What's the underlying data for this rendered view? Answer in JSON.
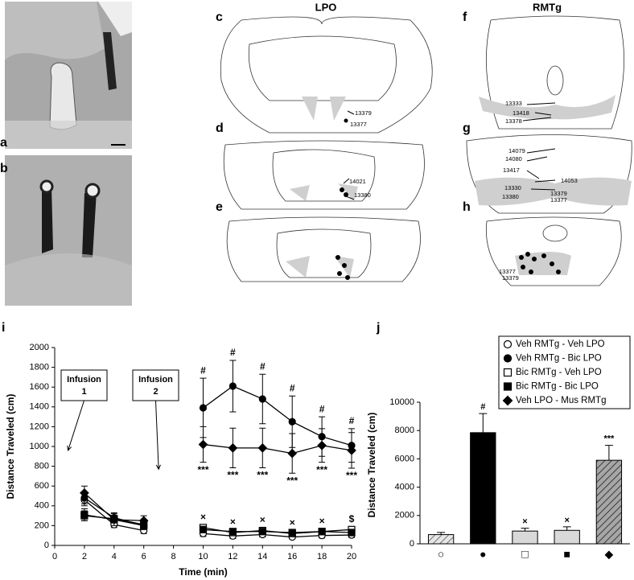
{
  "panel_letters": [
    "a",
    "b",
    "c",
    "d",
    "e",
    "f",
    "g",
    "h",
    "i",
    "j"
  ],
  "atlas": {
    "lpo_title": "LPO",
    "rmtg_title": "RMTg",
    "c_labels": [
      "13379",
      "13377"
    ],
    "d_labels": [
      "14021",
      "13380"
    ],
    "f_labels": [
      "13333",
      "13418",
      "13378"
    ],
    "g_labels": [
      "14079",
      "14080",
      "13417",
      "14053",
      "13330",
      "13380",
      "13379",
      "13377"
    ],
    "h_labels": [
      "13377",
      "13379"
    ]
  },
  "chart_data": [
    {
      "type": "line",
      "x_label": "Time (min)",
      "y_label": "Distance Traveled (cm)",
      "x": [
        2,
        4,
        6,
        8,
        10,
        12,
        14,
        16,
        18,
        20
      ],
      "xlim": [
        0,
        20
      ],
      "xticks": [
        0,
        2,
        4,
        6,
        8,
        10,
        12,
        14,
        16,
        18,
        20
      ],
      "ylim": [
        0,
        2000
      ],
      "yticks": [
        0,
        200,
        400,
        600,
        800,
        1000,
        1200,
        1400,
        1600,
        1800,
        2000
      ],
      "series": [
        {
          "marker": "circle-open",
          "color": "#000",
          "values": [
            460,
            210,
            150,
            null,
            120,
            95,
            110,
            85,
            100,
            105
          ],
          "errors": [
            60,
            30,
            30,
            null,
            30,
            25,
            25,
            20,
            25,
            25
          ]
        },
        {
          "marker": "circle-filled",
          "color": "#000",
          "values": [
            480,
            280,
            200,
            null,
            1390,
            1610,
            1480,
            1250,
            1100,
            1010
          ],
          "errors": [
            60,
            50,
            40,
            null,
            300,
            260,
            250,
            260,
            200,
            170
          ]
        },
        {
          "marker": "square-open",
          "color": "#000",
          "values": [
            300,
            270,
            210,
            null,
            180,
            130,
            150,
            120,
            140,
            160
          ],
          "errors": [
            50,
            30,
            30,
            null,
            30,
            30,
            30,
            30,
            30,
            30
          ]
        },
        {
          "marker": "square-filled",
          "color": "#000",
          "values": [
            310,
            260,
            200,
            null,
            160,
            140,
            140,
            130,
            140,
            130
          ],
          "errors": [
            60,
            30,
            30,
            null,
            30,
            30,
            30,
            30,
            30,
            30
          ]
        },
        {
          "marker": "diamond",
          "color": "#000",
          "values": [
            530,
            260,
            250,
            null,
            1020,
            985,
            985,
            930,
            1010,
            960
          ],
          "errors": [
            70,
            60,
            50,
            null,
            180,
            200,
            200,
            200,
            170,
            180
          ]
        }
      ],
      "annotations": [
        {
          "text": "#",
          "x": 10,
          "series": 1,
          "side": "above"
        },
        {
          "text": "#",
          "x": 12,
          "series": 1,
          "side": "above"
        },
        {
          "text": "#",
          "x": 14,
          "series": 1,
          "side": "above"
        },
        {
          "text": "#",
          "x": 16,
          "series": 1,
          "side": "above"
        },
        {
          "text": "#",
          "x": 18,
          "series": 1,
          "side": "above"
        },
        {
          "text": "#",
          "x": 20,
          "series": 1,
          "side": "above"
        },
        {
          "text": "***",
          "x": 10,
          "series": 4,
          "side": "below"
        },
        {
          "text": "***",
          "x": 12,
          "series": 4,
          "side": "below"
        },
        {
          "text": "***",
          "x": 14,
          "series": 4,
          "side": "below"
        },
        {
          "text": "***",
          "x": 16,
          "series": 4,
          "side": "below"
        },
        {
          "text": "***",
          "x": 18,
          "series": 4,
          "side": "below"
        },
        {
          "text": "***",
          "x": 20,
          "series": 4,
          "side": "below"
        },
        {
          "text": "×",
          "x": 10,
          "series": 2,
          "side": "above"
        },
        {
          "text": "×",
          "x": 12,
          "series": 2,
          "side": "above"
        },
        {
          "text": "×",
          "x": 14,
          "series": 2,
          "side": "above"
        },
        {
          "text": "×",
          "x": 16,
          "series": 2,
          "side": "above"
        },
        {
          "text": "×",
          "x": 18,
          "series": 2,
          "side": "above"
        },
        {
          "text": "$",
          "x": 20,
          "series": 2,
          "side": "above"
        }
      ],
      "infusions": [
        {
          "label": [
            "Infusion",
            "1"
          ],
          "x": 0.9,
          "y": 960
        },
        {
          "label": [
            "Infusion",
            "2"
          ],
          "x": 7,
          "y": 770
        }
      ]
    },
    {
      "type": "bar",
      "y_label": "Distance Traveled (cm)",
      "categories": [
        "○",
        "●",
        "□",
        "■",
        "◆"
      ],
      "values": [
        650,
        7850,
        900,
        950,
        5900
      ],
      "errors": [
        150,
        1350,
        200,
        250,
        1050
      ],
      "annotations": [
        null,
        "#",
        "×",
        "×",
        "***"
      ],
      "colors": [
        "#d9d9d9",
        "#000000",
        "#d9d9d9",
        "#d9d9d9",
        "#8c8c8c"
      ],
      "hatch": [
        true,
        false,
        false,
        false,
        true
      ],
      "ylim": [
        0,
        10000
      ],
      "yticks": [
        0,
        2000,
        4000,
        6000,
        8000,
        10000
      ],
      "legend_position": "top-right",
      "legend": [
        {
          "name": "Veh RMTg - Veh LPO",
          "marker": "circle-open"
        },
        {
          "name": "Veh RMTg - Bic LPO",
          "marker": "circle-filled"
        },
        {
          "name": "Bic RMTg - Veh LPO",
          "marker": "square-open"
        },
        {
          "name": "Bic RMTg - Bic LPO",
          "marker": "square-filled"
        },
        {
          "name": "Veh LPO - Mus RMTg",
          "marker": "diamond"
        }
      ]
    }
  ]
}
